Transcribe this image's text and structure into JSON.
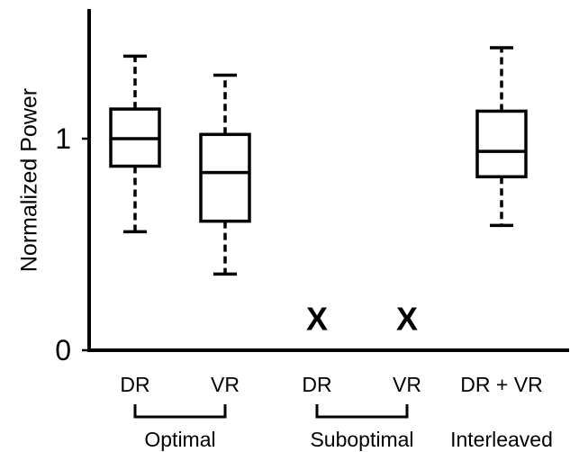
{
  "chart_data": {
    "type": "box",
    "ylabel": "Normalized Power",
    "xlabel": "",
    "ylim": [
      0,
      1.58
    ],
    "yticks": [
      {
        "value": 0,
        "label": "0"
      },
      {
        "value": 1,
        "label": "1"
      }
    ],
    "grid": false,
    "categories": [
      "DR",
      "VR",
      "DR",
      "VR",
      "DR + VR"
    ],
    "boxes": [
      {
        "label": "DR",
        "whisker_low": 0.56,
        "q1": 0.87,
        "median": 1.0,
        "q3": 1.14,
        "whisker_high": 1.39
      },
      {
        "label": "VR",
        "whisker_low": 0.36,
        "q1": 0.61,
        "median": 0.84,
        "q3": 1.02,
        "whisker_high": 1.3
      },
      {
        "label": "DR",
        "missing": true,
        "marker": "X"
      },
      {
        "label": "VR",
        "missing": true,
        "marker": "X"
      },
      {
        "label": "DR + VR",
        "whisker_low": 0.59,
        "q1": 0.82,
        "median": 0.94,
        "q3": 1.13,
        "whisker_high": 1.43
      }
    ],
    "groups": [
      {
        "label": "Optimal",
        "members": [
          0,
          1
        ]
      },
      {
        "label": "Suboptimal",
        "members": [
          2,
          3
        ]
      },
      {
        "label": "Interleaved",
        "members": [
          4
        ]
      }
    ]
  }
}
